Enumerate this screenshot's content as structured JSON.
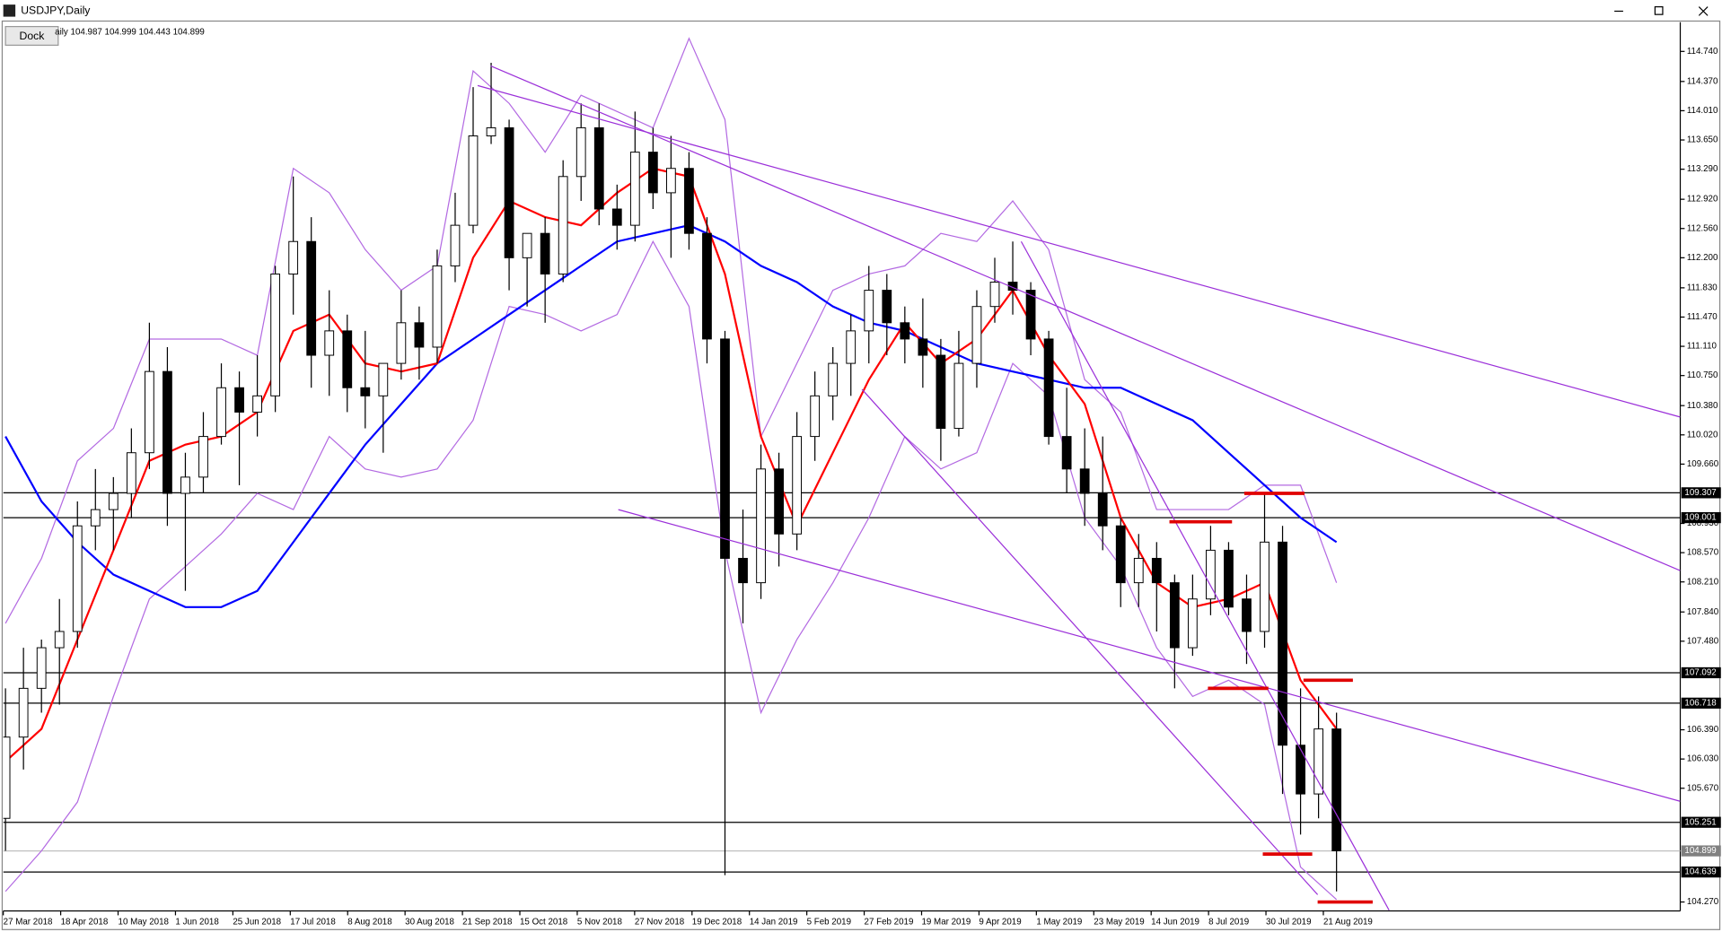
{
  "chart_data": {
    "type": "candlestick",
    "title": "USDJPY,Daily",
    "button": "Dock",
    "info": "aily 104.987 104.999 104.443 104.899",
    "ylim": [
      104.16,
      115.1
    ],
    "yticks": [
      {
        "value": 114.74,
        "label": "114.740"
      },
      {
        "value": 114.37,
        "label": "114.370"
      },
      {
        "value": 114.01,
        "label": "114.010"
      },
      {
        "value": 113.65,
        "label": "113.650"
      },
      {
        "value": 113.29,
        "label": "113.290"
      },
      {
        "value": 112.92,
        "label": "112.920"
      },
      {
        "value": 112.56,
        "label": "112.560"
      },
      {
        "value": 112.2,
        "label": "112.200"
      },
      {
        "value": 111.83,
        "label": "111.830"
      },
      {
        "value": 111.47,
        "label": "111.470"
      },
      {
        "value": 111.11,
        "label": "111.110"
      },
      {
        "value": 110.75,
        "label": "110.750"
      },
      {
        "value": 110.38,
        "label": "110.380"
      },
      {
        "value": 110.02,
        "label": "110.020"
      },
      {
        "value": 109.66,
        "label": "109.660"
      },
      {
        "value": 108.93,
        "label": "108.930"
      },
      {
        "value": 108.57,
        "label": "108.570"
      },
      {
        "value": 108.21,
        "label": "108.210"
      },
      {
        "value": 107.84,
        "label": "107.840"
      },
      {
        "value": 107.48,
        "label": "107.480"
      },
      {
        "value": 106.39,
        "label": "106.390"
      },
      {
        "value": 106.03,
        "label": "106.030"
      },
      {
        "value": 105.67,
        "label": "105.670"
      },
      {
        "value": 104.27,
        "label": "104.270"
      }
    ],
    "xticks": [
      "27 Mar 2018",
      "18 Apr 2018",
      "10 May 2018",
      "1 Jun 2018",
      "25 Jun 2018",
      "17 Jul 2018",
      "8 Aug 2018",
      "30 Aug 2018",
      "21 Sep 2018",
      "15 Oct 2018",
      "5 Nov 2018",
      "27 Nov 2018",
      "19 Dec 2018",
      "14 Jan 2019",
      "5 Feb 2019",
      "27 Feb 2019",
      "19 Mar 2019",
      "9 Apr 2019",
      "1 May 2019",
      "23 May 2019",
      "14 Jun 2019",
      "8 Jul 2019",
      "30 Jul 2019",
      "21 Aug 2019"
    ],
    "open": [
      105.3,
      106.3,
      106.9,
      107.4,
      107.6,
      108.9,
      109.1,
      109.3,
      109.8,
      110.8,
      109.3,
      109.5,
      110.0,
      110.6,
      110.3,
      110.5,
      112.0,
      112.4,
      111.0,
      111.3,
      110.6,
      110.5,
      110.9,
      111.4,
      111.1,
      112.1,
      112.6,
      113.7,
      113.8,
      112.2,
      112.5,
      112.0,
      113.2,
      113.8,
      112.8,
      112.6,
      113.5,
      113.0,
      113.3,
      112.5,
      111.2,
      108.5,
      108.2,
      109.6,
      108.8,
      110.0,
      110.5,
      110.9,
      111.3,
      111.8,
      111.4,
      111.2,
      111.0,
      110.1,
      110.9,
      111.6,
      111.9,
      111.8,
      111.2,
      110.0,
      109.6,
      109.3,
      108.9,
      108.2,
      108.5,
      108.2,
      107.4,
      108.0,
      108.6,
      108.0,
      107.6,
      108.7,
      106.2,
      105.6,
      106.4
    ],
    "high": [
      106.9,
      107.4,
      107.5,
      108.0,
      109.2,
      109.6,
      109.5,
      110.1,
      111.4,
      111.1,
      109.8,
      110.3,
      110.9,
      110.8,
      111.0,
      112.1,
      113.2,
      112.7,
      111.8,
      111.5,
      111.3,
      110.9,
      111.8,
      111.6,
      112.3,
      113.0,
      114.3,
      114.6,
      113.9,
      112.5,
      112.7,
      113.4,
      114.1,
      114.1,
      113.1,
      114.0,
      113.8,
      113.7,
      113.5,
      112.7,
      111.3,
      109.1,
      109.9,
      109.8,
      110.3,
      110.8,
      111.1,
      111.5,
      112.1,
      112.0,
      111.6,
      111.7,
      111.2,
      111.3,
      111.8,
      112.2,
      112.4,
      111.9,
      111.3,
      110.6,
      110.1,
      110.0,
      109.0,
      108.8,
      108.7,
      108.3,
      108.3,
      108.9,
      108.7,
      108.3,
      109.3,
      108.9,
      106.9,
      106.8,
      106.6
    ],
    "low": [
      104.9,
      105.9,
      106.6,
      106.7,
      107.4,
      108.6,
      108.6,
      109.0,
      109.6,
      108.9,
      108.1,
      109.3,
      109.9,
      109.4,
      110.0,
      110.3,
      111.5,
      110.6,
      110.5,
      110.3,
      110.1,
      109.8,
      110.7,
      110.7,
      110.9,
      111.9,
      112.5,
      113.6,
      111.8,
      111.6,
      111.4,
      111.9,
      112.9,
      112.6,
      112.3,
      112.4,
      112.8,
      112.2,
      112.3,
      110.9,
      104.6,
      107.7,
      108.0,
      108.4,
      108.6,
      109.7,
      110.2,
      110.5,
      110.9,
      111.0,
      110.9,
      110.6,
      109.7,
      110.0,
      110.6,
      111.4,
      111.5,
      111.0,
      109.9,
      109.3,
      108.9,
      108.6,
      107.9,
      107.9,
      107.6,
      106.9,
      107.3,
      107.8,
      107.8,
      107.2,
      107.4,
      105.6,
      105.1,
      105.3,
      104.4
    ],
    "close": [
      106.3,
      106.9,
      107.4,
      107.6,
      108.9,
      109.1,
      109.3,
      109.8,
      110.8,
      109.3,
      109.5,
      110.0,
      110.6,
      110.3,
      110.5,
      112.0,
      112.4,
      111.0,
      111.3,
      110.6,
      110.5,
      110.9,
      111.4,
      111.1,
      112.1,
      112.6,
      113.7,
      113.8,
      112.2,
      112.5,
      112.0,
      113.2,
      113.8,
      112.8,
      112.6,
      113.5,
      113.0,
      113.3,
      112.5,
      111.2,
      108.5,
      108.2,
      109.6,
      108.8,
      110.0,
      110.5,
      110.9,
      111.3,
      111.8,
      111.4,
      111.2,
      111.0,
      110.1,
      110.9,
      111.6,
      111.9,
      111.8,
      111.2,
      110.0,
      109.6,
      109.3,
      108.9,
      108.2,
      108.5,
      108.2,
      107.4,
      108.0,
      108.6,
      107.9,
      107.6,
      108.7,
      106.2,
      105.6,
      106.4,
      104.9
    ],
    "lines": [
      {
        "color": "#b36ae2",
        "values": [
          107.7,
          108.5,
          109.7,
          110.1,
          111.2,
          111.2,
          111.2,
          111.0,
          113.3,
          113.0,
          112.3,
          111.8,
          112.1,
          114.5,
          114.1,
          113.5,
          114.2,
          114.0,
          113.8,
          114.9,
          113.9,
          110.0,
          110.9,
          111.8,
          112.0,
          112.1,
          112.5,
          112.4,
          112.9,
          112.3,
          110.7,
          110.3,
          109.1,
          109.1,
          109.1,
          109.4,
          109.4,
          108.2
        ]
      },
      {
        "color": "#b36ae2",
        "values": [
          104.4,
          104.9,
          105.5,
          106.8,
          108.0,
          108.4,
          108.8,
          109.3,
          109.1,
          110.0,
          109.6,
          109.5,
          109.6,
          110.2,
          111.6,
          111.5,
          111.3,
          111.5,
          112.4,
          111.6,
          108.6,
          106.6,
          107.5,
          108.2,
          109.0,
          110.0,
          109.6,
          109.8,
          110.9,
          110.5,
          109.0,
          108.4,
          107.4,
          106.8,
          107.0,
          106.7,
          104.7,
          104.3
        ]
      },
      {
        "color": "#0000ff",
        "values": [
          110.0,
          109.2,
          108.7,
          108.3,
          108.1,
          107.9,
          107.9,
          108.1,
          108.7,
          109.3,
          109.9,
          110.4,
          110.9,
          111.2,
          111.5,
          111.8,
          112.1,
          112.4,
          112.5,
          112.6,
          112.4,
          112.1,
          111.9,
          111.6,
          111.4,
          111.3,
          111.1,
          110.9,
          110.8,
          110.7,
          110.6,
          110.6,
          110.4,
          110.2,
          109.8,
          109.4,
          109.0,
          108.7
        ]
      },
      {
        "color": "#ff0000",
        "values": [
          106.0,
          106.4,
          107.5,
          108.6,
          109.7,
          109.9,
          110.0,
          110.3,
          111.3,
          111.5,
          110.9,
          110.8,
          110.9,
          112.2,
          112.9,
          112.7,
          112.6,
          113.0,
          113.3,
          113.2,
          112.0,
          110.0,
          108.9,
          109.8,
          110.7,
          111.4,
          110.9,
          111.2,
          111.8,
          111.0,
          110.4,
          109.0,
          108.2,
          107.9,
          108.0,
          108.2,
          107.0,
          106.4
        ]
      }
    ],
    "hlines": [
      {
        "value": 109.307,
        "label": "109.307",
        "color": "#000000"
      },
      {
        "value": 109.001,
        "label": "109.001",
        "color": "#000000"
      },
      {
        "value": 107.092,
        "label": "107.092",
        "color": "#000000"
      },
      {
        "value": 106.718,
        "label": "106.718",
        "color": "#000000"
      },
      {
        "value": 105.251,
        "label": "105.251",
        "color": "#000000"
      },
      {
        "value": 104.899,
        "label": "104.899",
        "color": "#c0c0c0"
      },
      {
        "value": 104.639,
        "label": "104.639",
        "color": "#000000"
      }
    ],
    "trendlines": [
      {
        "color": "#9b30d9",
        "x": [
          26.98,
          93.1
        ],
        "y": [
          114.56,
          108.35
        ]
      },
      {
        "color": "#9b30d9",
        "x": [
          26.25,
          93.1
        ],
        "y": [
          114.32,
          110.24
        ]
      },
      {
        "color": "#9b30d9",
        "x": [
          34.07,
          93.1
        ],
        "y": [
          109.1,
          105.51
        ]
      },
      {
        "color": "#9b30d9",
        "x": [
          56.47,
          76.92
        ],
        "y": [
          112.4,
          104.17
        ]
      },
      {
        "color": "#9b30d9",
        "x": [
          47.62,
          72.95
        ],
        "y": [
          110.58,
          104.36
        ]
      },
      {
        "color": "#e00000",
        "x": [
          64.71,
          68.19
        ],
        "y": [
          108.95,
          108.95
        ]
      },
      {
        "color": "#e00000",
        "x": [
          68.87,
          72.22
        ],
        "y": [
          109.3,
          109.3
        ]
      },
      {
        "color": "#e00000",
        "x": [
          66.85,
          70.21
        ],
        "y": [
          106.9,
          106.9
        ]
      },
      {
        "color": "#e00000",
        "x": [
          72.16,
          74.91
        ],
        "y": [
          107.0,
          107.0
        ]
      },
      {
        "color": "#e00000",
        "x": [
          69.9,
          72.65
        ],
        "y": [
          104.86,
          104.86
        ]
      },
      {
        "color": "#e00000",
        "x": [
          72.95,
          76.01
        ],
        "y": [
          104.27,
          104.27
        ]
      }
    ]
  }
}
